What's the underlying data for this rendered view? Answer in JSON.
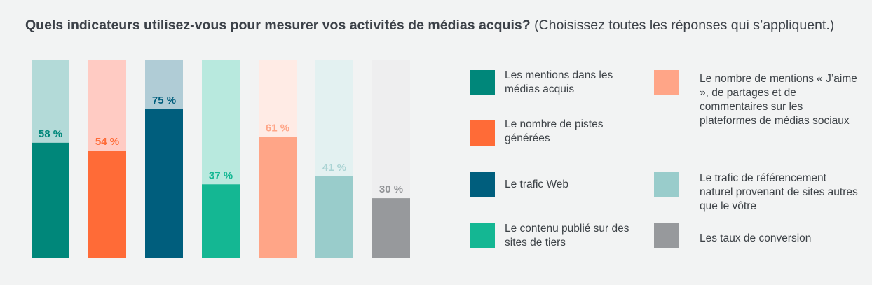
{
  "header": {
    "question": "Quels indicateurs utilisez-vous pour mesurer vos activités de médias acquis?",
    "instruction": "(Choisissez toutes les réponses qui s’appliquent.)"
  },
  "chart_data": {
    "type": "bar",
    "title": "Quels indicateurs utilisez-vous pour mesurer vos activités de médias acquis? (Choisissez toutes les réponses qui s’appliquent.)",
    "ylim": [
      0,
      100
    ],
    "value_labels": [
      "58 %",
      "54 %",
      "75 %",
      "37 %",
      "61 %",
      "41 %",
      "30 %"
    ],
    "series": [
      {
        "name": "Les mentions dans les médias acquis",
        "value": 58,
        "color": "#00877a",
        "track": "#b3dad8",
        "label_color": "#00877a"
      },
      {
        "name": "Le nombre de pistes générées",
        "value": 54,
        "color": "#ff6b37",
        "track": "#ffcbc3",
        "label_color": "#ff6b37"
      },
      {
        "name": "Le trafic Web",
        "value": 75,
        "color": "#005e7d",
        "track": "#b0ccd6",
        "label_color": "#005e7d"
      },
      {
        "name": "Le contenu publié sur des sites de tiers",
        "value": 37,
        "color": "#14b793",
        "track": "#b8e9de",
        "label_color": "#14b793"
      },
      {
        "name": "Le nombre de mentions « J’aime », de partages et de commentaires sur les plateformes de médias sociaux",
        "value": 61,
        "color": "#ffa587",
        "track": "#ffebe5",
        "label_color": "#ffa587"
      },
      {
        "name": "Le trafic de référencement naturel provenant de sites autres que le vôtre",
        "value": 41,
        "color": "#99cccb",
        "track": "#e3f1f1",
        "label_color": "#a9d3d3"
      },
      {
        "name": "Les taux de conversion",
        "value": 30,
        "color": "#97999c",
        "track": "#eeeeef",
        "label_color": "#929497"
      }
    ]
  },
  "legend": [
    {
      "label": "Les mentions dans les médias acquis",
      "color": "#00877a"
    },
    {
      "label": "Le nombre de pistes générées",
      "color": "#ff6b37"
    },
    {
      "label": "Le trafic Web",
      "color": "#005e7d"
    },
    {
      "label": "Le contenu publié sur des sites de tiers",
      "color": "#14b793"
    },
    {
      "label": "Le nombre de mentions « J’aime », de partages et de commentaires sur les plateformes de médias sociaux",
      "color": "#ffa587"
    },
    {
      "label": "Le trafic de référencement naturel provenant de sites autres que le vôtre",
      "color": "#99cccb"
    },
    {
      "label": "Les taux de conversion",
      "color": "#97999c"
    }
  ]
}
